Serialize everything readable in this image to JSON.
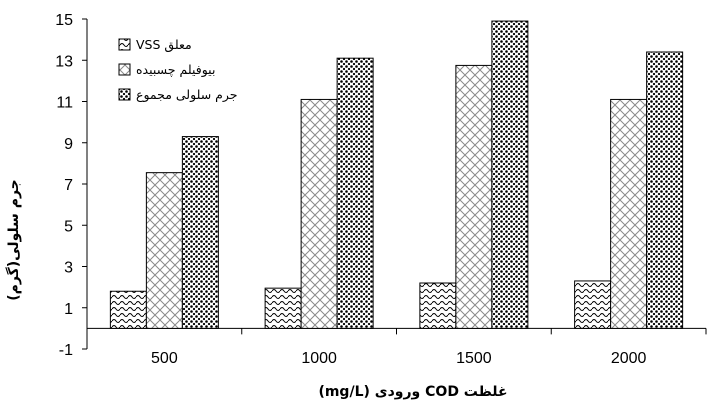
{
  "chart_data": {
    "type": "bar",
    "categories": [
      "500",
      "1000",
      "1500",
      "2000"
    ],
    "series": [
      {
        "name": "معلق VSS",
        "values": [
          1.8,
          1.95,
          2.2,
          2.3
        ],
        "pattern": "wave"
      },
      {
        "name": "بیوفیلم چسبیده",
        "values": [
          7.55,
          11.1,
          12.75,
          11.1
        ],
        "pattern": "cross"
      },
      {
        "name": "جرم سلولی مجموع",
        "values": [
          9.3,
          13.1,
          14.9,
          13.4
        ],
        "pattern": "dots"
      }
    ],
    "xlabel": "غلظت COD ورودی (mg/L)",
    "ylabel": "جرم سلولی(گرم)",
    "ylim": [
      -1,
      15
    ],
    "yticks": [
      -1,
      1,
      3,
      5,
      7,
      9,
      11,
      13,
      15
    ],
    "legend_position": "top-left",
    "grid": false
  }
}
